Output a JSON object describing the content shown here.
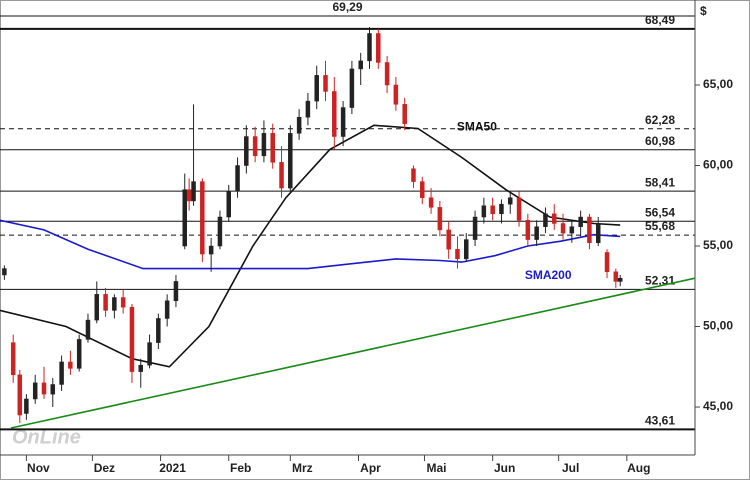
{
  "chart_data": {
    "type": "candlestick",
    "y_unit": "$",
    "watermark": "OnLine",
    "xlim": [
      0,
      316
    ],
    "ylim": [
      42.02,
      70.28
    ],
    "xticks": [
      {
        "value": 12,
        "label": "Nov"
      },
      {
        "value": 42,
        "label": "Dez"
      },
      {
        "value": 73,
        "label": "2021"
      },
      {
        "value": 104,
        "label": "Feb"
      },
      {
        "value": 132,
        "label": "Mrz"
      },
      {
        "value": 163,
        "label": "Apr"
      },
      {
        "value": 193,
        "label": "Mai"
      },
      {
        "value": 224,
        "label": "Jun"
      },
      {
        "value": 254,
        "label": "Jul"
      },
      {
        "value": 285,
        "label": "Aug"
      }
    ],
    "yticks": [
      {
        "value": 45,
        "label": "45,00"
      },
      {
        "value": 50,
        "label": "50,00"
      },
      {
        "value": 55,
        "label": "55,00"
      },
      {
        "value": 60,
        "label": "60,00"
      },
      {
        "value": 65,
        "label": "65,00"
      }
    ],
    "up_color": "#222222",
    "down_color": "#cc2222",
    "x": [
      2,
      6,
      9,
      12,
      16,
      20,
      24,
      28,
      32,
      36,
      40,
      44,
      48,
      52,
      56,
      60,
      64,
      68,
      72,
      76,
      80,
      84,
      86,
      88,
      92,
      96,
      100,
      104,
      108,
      112,
      116,
      120,
      124,
      128,
      132,
      136,
      140,
      144,
      148,
      152,
      156,
      160,
      164,
      168,
      172,
      176,
      180,
      184,
      188,
      192,
      196,
      200,
      204,
      208,
      212,
      216,
      220,
      224,
      228,
      232,
      236,
      240,
      244,
      248,
      252,
      256,
      260,
      264,
      268,
      272,
      276,
      280,
      282
    ],
    "open": [
      53.2,
      49.0,
      47.0,
      44.6,
      45.5,
      46.5,
      45.8,
      46.4,
      47.8,
      47.4,
      49.2,
      50.4,
      52.0,
      51.0,
      51.8,
      51.2,
      47.2,
      47.6,
      49.0,
      50.5,
      51.6,
      55.0,
      58.5,
      57.8,
      59.0,
      54.5,
      55.0,
      56.8,
      58.4,
      60.0,
      61.8,
      60.6,
      62.0,
      60.2,
      58.6,
      62.0,
      63.0,
      64.0,
      65.6,
      64.6,
      61.8,
      63.6,
      66.0,
      66.5,
      68.2,
      66.4,
      65.0,
      63.8,
      59.8,
      59.0,
      58.0,
      57.4,
      56.0,
      54.8,
      54.2,
      55.4,
      56.8,
      57.5,
      57.0,
      57.6,
      58.0,
      56.6,
      55.4,
      56.2,
      57.0,
      56.4,
      55.8,
      56.2,
      56.8,
      55.2,
      54.6,
      53.4,
      52.8
    ],
    "high": [
      53.8,
      49.5,
      47.3,
      45.8,
      47.0,
      47.5,
      46.8,
      48.2,
      48.5,
      49.5,
      50.8,
      52.8,
      52.4,
      52.0,
      52.3,
      51.4,
      48.0,
      49.5,
      50.8,
      52.0,
      53.2,
      59.5,
      59.2,
      63.8,
      59.2,
      55.5,
      57.2,
      58.8,
      60.5,
      62.5,
      62.4,
      62.8,
      62.6,
      61.2,
      62.5,
      63.5,
      64.5,
      66.2,
      66.5,
      65.5,
      64.0,
      66.5,
      67.0,
      68.6,
      68.5,
      66.8,
      65.5,
      64.2,
      60.0,
      59.3,
      58.6,
      57.8,
      56.5,
      55.6,
      55.8,
      57.2,
      58.0,
      58.0,
      57.9,
      58.4,
      58.4,
      57.0,
      56.6,
      57.4,
      57.6,
      57.0,
      56.6,
      57.2,
      57.0,
      56.8,
      54.8,
      53.6,
      53.2
    ],
    "low": [
      52.9,
      46.5,
      44.0,
      44.2,
      45.2,
      45.5,
      45.0,
      46.0,
      47.0,
      47.2,
      49.0,
      50.2,
      50.6,
      50.5,
      50.8,
      46.5,
      46.2,
      47.4,
      48.6,
      50.0,
      51.2,
      54.8,
      57.2,
      57.5,
      54.0,
      53.4,
      54.8,
      56.5,
      58.0,
      59.5,
      60.2,
      60.2,
      59.8,
      58.0,
      58.4,
      61.6,
      62.5,
      63.5,
      64.0,
      61.0,
      61.2,
      63.2,
      65.0,
      66.0,
      66.0,
      64.5,
      63.4,
      62.2,
      58.6,
      57.6,
      57.0,
      55.6,
      54.2,
      53.6,
      54.0,
      55.0,
      56.4,
      56.6,
      56.4,
      57.0,
      56.2,
      55.0,
      55.0,
      55.8,
      56.0,
      55.4,
      55.2,
      55.6,
      54.8,
      55.0,
      53.0,
      52.4,
      52.5
    ],
    "close": [
      53.6,
      47.0,
      44.5,
      45.5,
      46.5,
      45.8,
      46.4,
      47.8,
      47.4,
      49.2,
      50.4,
      52.0,
      51.0,
      51.8,
      51.2,
      47.2,
      47.6,
      49.0,
      50.5,
      51.6,
      52.8,
      58.5,
      57.8,
      59.0,
      54.5,
      55.0,
      56.8,
      58.4,
      60.0,
      61.8,
      60.6,
      62.0,
      60.2,
      58.6,
      62.0,
      63.0,
      64.0,
      65.6,
      64.6,
      61.8,
      63.6,
      66.0,
      66.5,
      68.2,
      66.4,
      65.0,
      63.8,
      62.6,
      59.0,
      58.0,
      57.4,
      56.0,
      54.8,
      54.2,
      55.4,
      56.8,
      57.5,
      57.0,
      57.6,
      58.0,
      56.6,
      55.4,
      56.2,
      57.0,
      56.4,
      55.8,
      56.2,
      56.8,
      55.2,
      56.4,
      53.4,
      52.8,
      53.0
    ],
    "series": [
      {
        "name": "SMA50",
        "color": "#111111",
        "x": [
          0,
          30,
          60,
          77,
          95,
          115,
          130,
          150,
          170,
          190,
          210,
          230,
          250,
          270,
          282
        ],
        "values": [
          51.0,
          50.0,
          48.0,
          47.5,
          50.0,
          55.0,
          58.0,
          61.0,
          62.5,
          62.3,
          60.5,
          58.5,
          56.8,
          56.4,
          56.3
        ]
      },
      {
        "name": "SMA200",
        "color": "#1a1acc",
        "x": [
          0,
          20,
          40,
          65,
          100,
          140,
          160,
          180,
          200,
          210,
          225,
          240,
          255,
          270,
          282
        ],
        "values": [
          56.6,
          56.0,
          54.8,
          53.6,
          53.6,
          53.6,
          53.9,
          54.2,
          54.1,
          54.0,
          54.4,
          55.0,
          55.3,
          55.7,
          55.6
        ]
      },
      {
        "color": "#1a8a1a",
        "x": [
          5,
          316
        ],
        "values": [
          43.7,
          53.0
        ]
      }
    ],
    "levels": [
      {
        "value": 69.29,
        "label": "69,29",
        "style": "solid",
        "label_align": "center"
      },
      {
        "value": 68.49,
        "label": "68,49",
        "style": "bold",
        "label_align": "right"
      },
      {
        "value": 62.28,
        "label": "62,28",
        "style": "dashed",
        "label_align": "right"
      },
      {
        "value": 60.98,
        "label": "60,98",
        "style": "solid",
        "label_align": "right"
      },
      {
        "value": 58.41,
        "label": "58,41",
        "style": "solid",
        "label_align": "right"
      },
      {
        "value": 56.54,
        "label": "56,54",
        "style": "solid",
        "label_align": "right"
      },
      {
        "value": 55.68,
        "label": "55,68",
        "style": "dashed",
        "label_align": "right"
      },
      {
        "value": 52.31,
        "label": "52,31",
        "style": "solid",
        "label_align": "right"
      },
      {
        "value": 43.61,
        "label": "43,61",
        "style": "bold",
        "label_align": "right"
      }
    ]
  }
}
